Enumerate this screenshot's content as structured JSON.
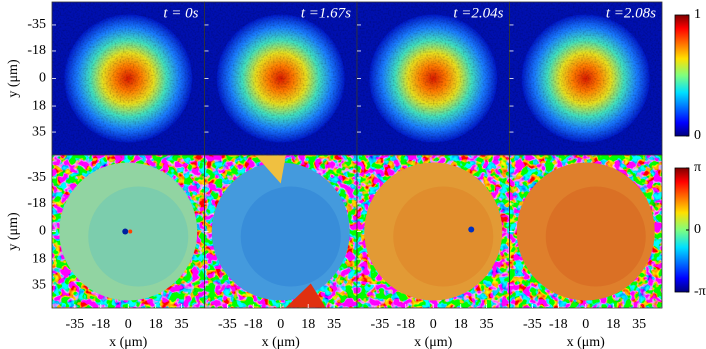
{
  "chart_data": [
    {
      "type": "image",
      "titles": [
        "t = 0s",
        "t =1.67s",
        "t =2.04s",
        "t =2.08s"
      ],
      "ylabel": "y (μm)",
      "ylim": [
        -50,
        50
      ],
      "y_inverted": true,
      "yticks": [
        -35,
        -18,
        0,
        18,
        35
      ],
      "colormap": "jet",
      "clim": [
        0,
        1
      ],
      "cticks": [
        0,
        1
      ]
    },
    {
      "type": "image",
      "ylabel": "y (μm)",
      "xlabel": "x (μm)",
      "xlim": [
        -50,
        50
      ],
      "ylim": [
        -50,
        50
      ],
      "y_inverted": true,
      "xticks": [
        -35,
        -18,
        0,
        18,
        35
      ],
      "yticks": [
        -35,
        -18,
        0,
        18,
        35
      ],
      "colormap": "jet",
      "clim": [
        -3.14159,
        3.14159
      ],
      "cticks": [
        {
          "value": -3.14159,
          "label": "-π"
        },
        0,
        {
          "value": 3.14159,
          "label": "π"
        }
      ]
    }
  ]
}
